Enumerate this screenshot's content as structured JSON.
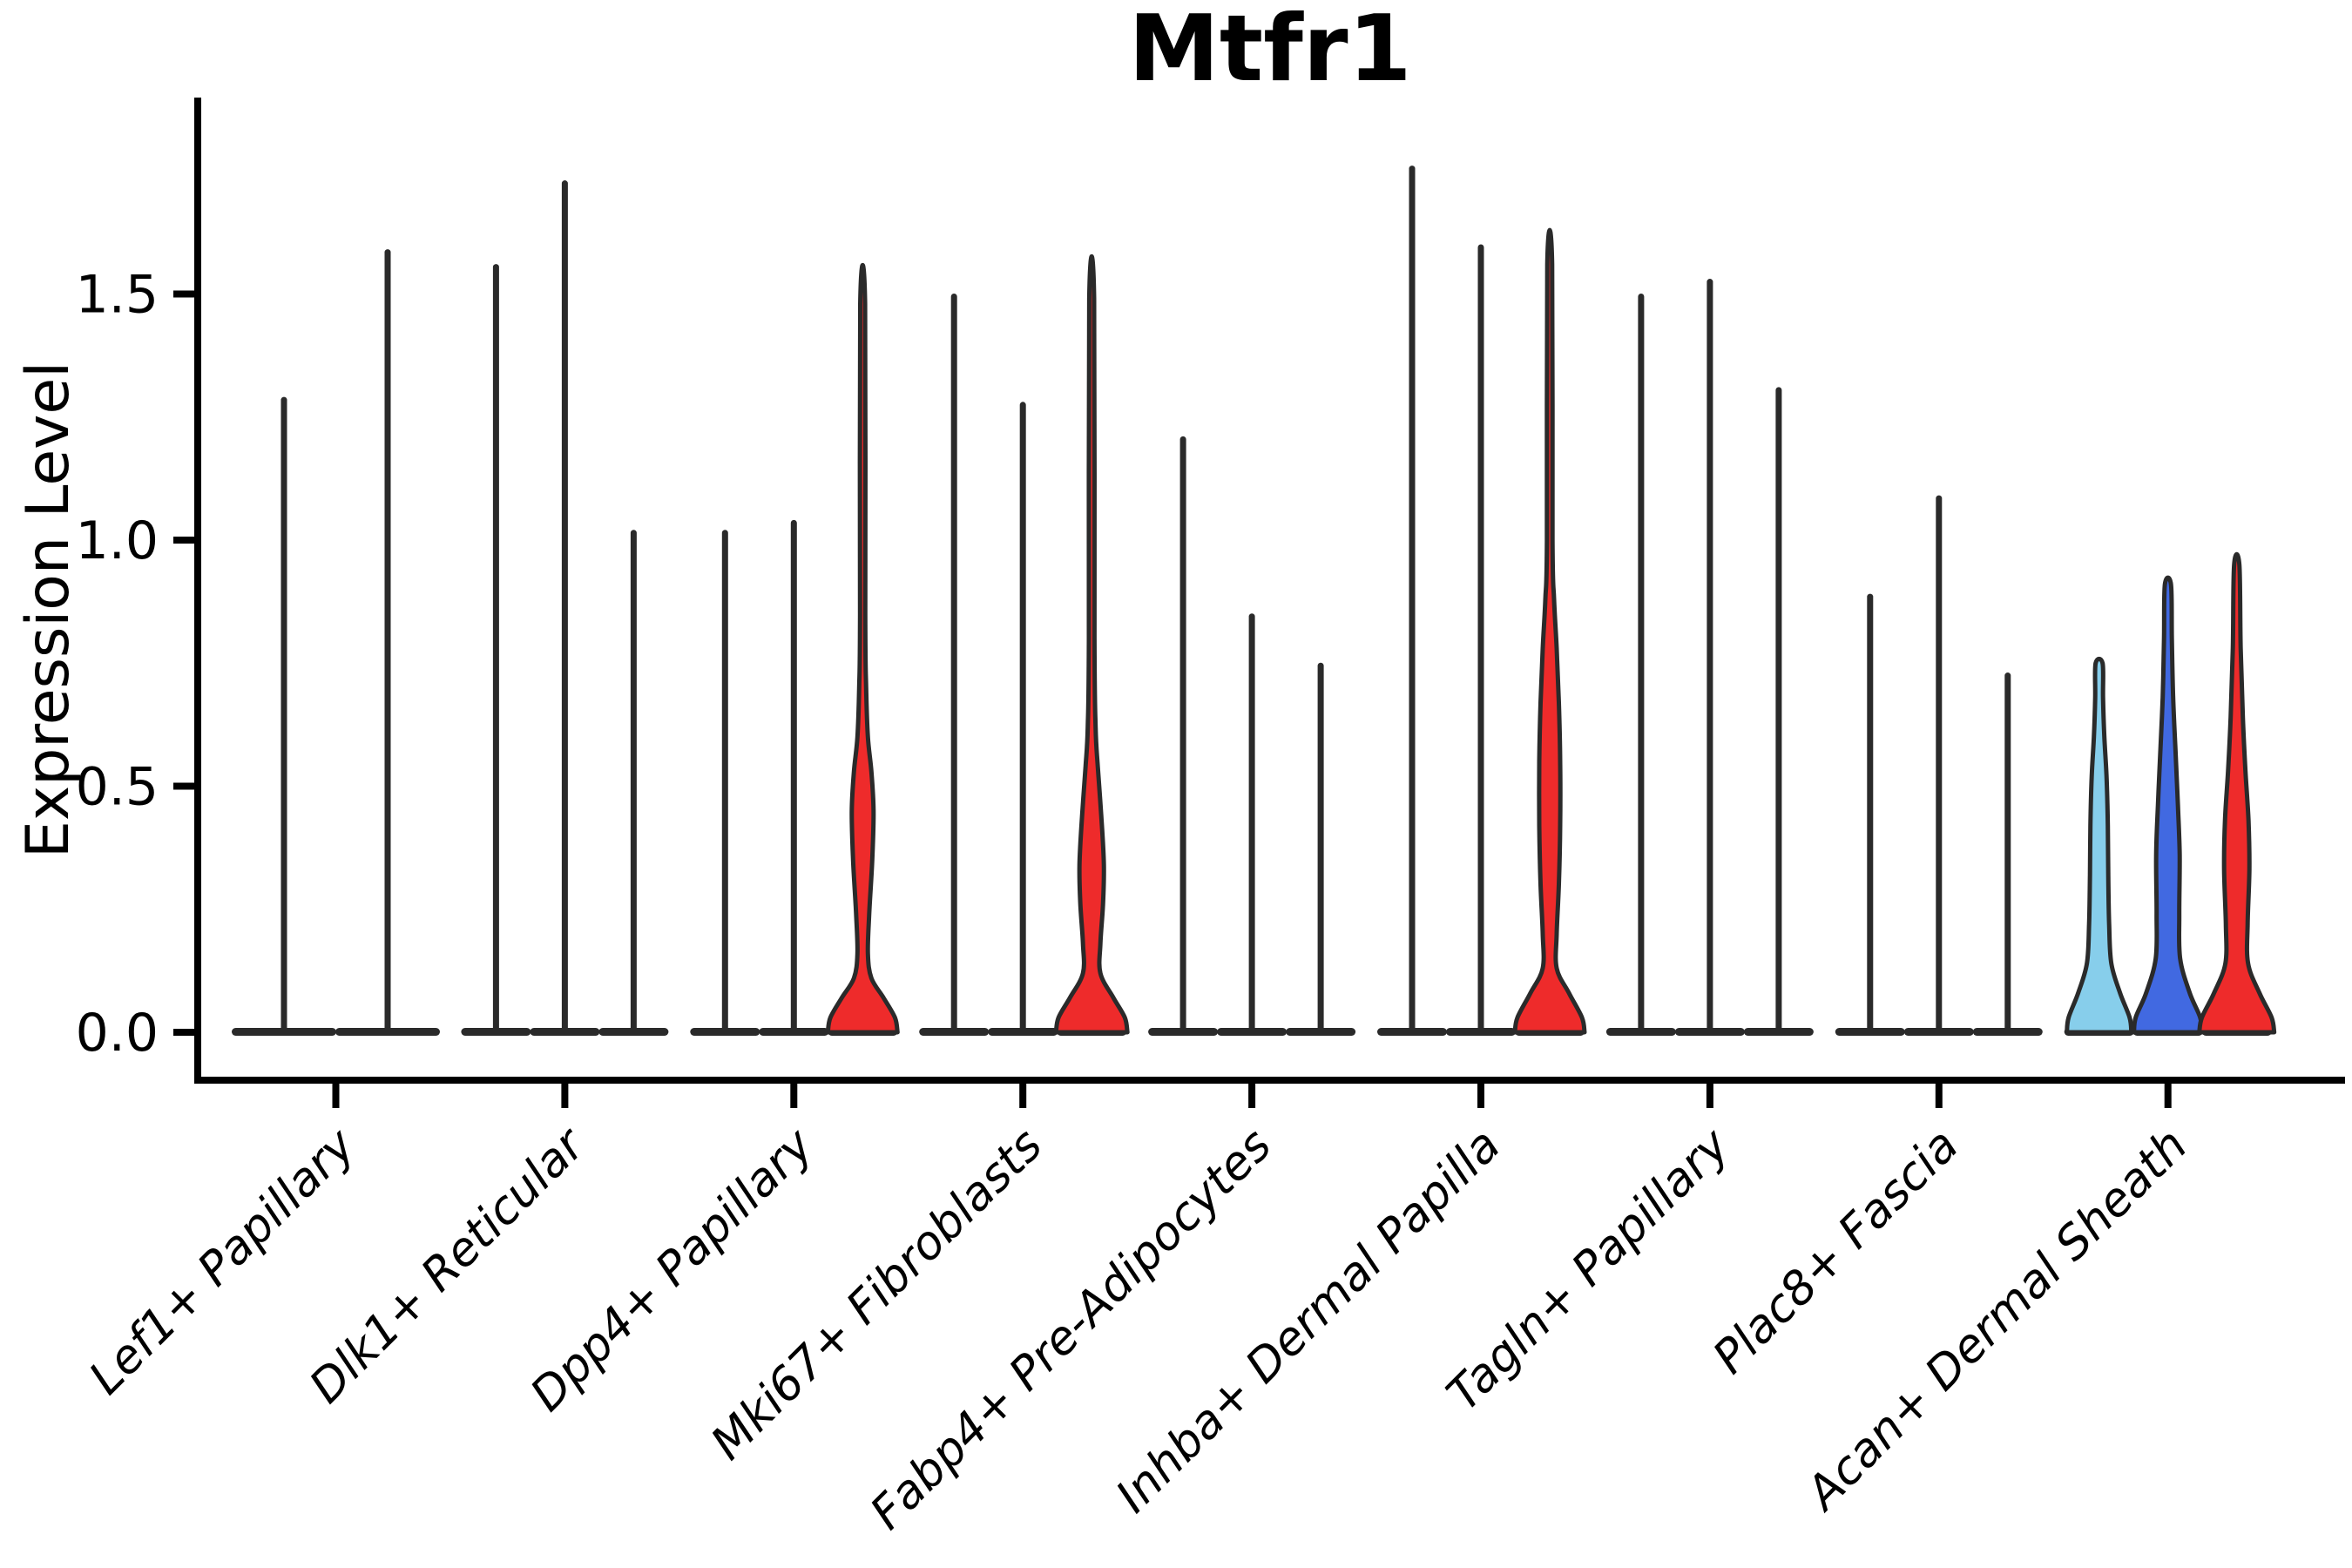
{
  "chart_data": {
    "type": "violin",
    "title": "Mtfr1",
    "ylabel": "Expression Level",
    "xlabel": "",
    "ylim": [
      0,
      1.89
    ],
    "yticks": [
      0.0,
      0.5,
      1.0,
      1.5
    ],
    "ytick_labels": [
      "0.0",
      "0.5",
      "1.0",
      "1.5"
    ],
    "legend": "none",
    "grid": false,
    "colors": {
      "outline": "#2a2a2a",
      "axis": "#000000",
      "red_fill": "#ee2b2b",
      "lightblue_fill": "#87ceeb",
      "blue_fill": "#4169e1"
    },
    "groups": [
      {
        "category": "Lef1+ Papillary",
        "violins": [
          {
            "max": 1.29,
            "kind": "spike"
          },
          {
            "max": 1.59,
            "kind": "spike"
          }
        ]
      },
      {
        "category": "Dlk1+ Reticular",
        "violins": [
          {
            "max": 1.56,
            "kind": "spike"
          },
          {
            "max": 1.73,
            "kind": "spike"
          },
          {
            "max": 1.02,
            "kind": "spike"
          }
        ]
      },
      {
        "category": "Dpp4+ Papillary",
        "violins": [
          {
            "max": 1.02,
            "kind": "spike"
          },
          {
            "max": 1.04,
            "kind": "spike"
          },
          {
            "max": 1.48,
            "kind": "density",
            "fill": "#ee2b2b",
            "profile": [
              [
                0,
                40
              ],
              [
                0.03,
                37
              ],
              [
                0.07,
                24
              ],
              [
                0.11,
                10
              ],
              [
                0.16,
                6
              ],
              [
                0.24,
                7.5
              ],
              [
                0.35,
                11
              ],
              [
                0.45,
                12.5
              ],
              [
                0.53,
                10
              ],
              [
                0.6,
                6
              ],
              [
                0.7,
                4
              ],
              [
                0.85,
                3
              ],
              [
                1.48,
                2.8
              ]
            ]
          }
        ]
      },
      {
        "category": "Mki67+ Fibroblasts",
        "violins": [
          {
            "max": 1.5,
            "kind": "spike"
          },
          {
            "max": 1.28,
            "kind": "spike"
          },
          {
            "max": 1.49,
            "kind": "density",
            "fill": "#ee2b2b",
            "profile": [
              [
                0,
                41
              ],
              [
                0.03,
                38
              ],
              [
                0.07,
                25
              ],
              [
                0.12,
                10
              ],
              [
                0.18,
                10
              ],
              [
                0.26,
                13
              ],
              [
                0.34,
                14
              ],
              [
                0.44,
                11
              ],
              [
                0.54,
                7
              ],
              [
                0.62,
                4.5
              ],
              [
                0.8,
                3.2
              ],
              [
                1.49,
                2.8
              ]
            ]
          }
        ]
      },
      {
        "category": "Fabp4+ Pre-Adipocytes",
        "violins": [
          {
            "max": 1.21,
            "kind": "spike"
          },
          {
            "max": 0.85,
            "kind": "spike"
          },
          {
            "max": 0.75,
            "kind": "spike"
          }
        ]
      },
      {
        "category": "Inhba+ Dermal Papilla",
        "violins": [
          {
            "max": 1.76,
            "kind": "spike"
          },
          {
            "max": 1.6,
            "kind": "spike"
          },
          {
            "max": 1.56,
            "kind": "density",
            "fill": "#ee2b2b",
            "profile": [
              [
                0,
                40
              ],
              [
                0.03,
                37
              ],
              [
                0.08,
                22
              ],
              [
                0.13,
                8
              ],
              [
                0.2,
                8
              ],
              [
                0.3,
                10.5
              ],
              [
                0.42,
                12
              ],
              [
                0.55,
                12
              ],
              [
                0.67,
                10.5
              ],
              [
                0.78,
                8
              ],
              [
                0.88,
                5
              ],
              [
                1.0,
                3.2
              ],
              [
                1.56,
                2.8
              ]
            ]
          }
        ]
      },
      {
        "category": "Tagln+ Papillary",
        "violins": [
          {
            "max": 1.5,
            "kind": "spike"
          },
          {
            "max": 1.53,
            "kind": "spike"
          },
          {
            "max": 1.31,
            "kind": "spike"
          }
        ]
      },
      {
        "category": "Plac8+ Fascia",
        "violins": [
          {
            "max": 0.89,
            "kind": "spike"
          },
          {
            "max": 1.09,
            "kind": "spike"
          },
          {
            "max": 0.73,
            "kind": "spike"
          }
        ]
      },
      {
        "category": "Acan+ Dermal Sheath",
        "violins": [
          {
            "max": 0.75,
            "kind": "density",
            "fill": "#87ceeb",
            "profile": [
              [
                0,
                37
              ],
              [
                0.03,
                35
              ],
              [
                0.08,
                24
              ],
              [
                0.14,
                14
              ],
              [
                0.22,
                11.5
              ],
              [
                0.32,
                10.5
              ],
              [
                0.42,
                10
              ],
              [
                0.52,
                8.5
              ],
              [
                0.6,
                6
              ],
              [
                0.68,
                4.5
              ],
              [
                0.75,
                4
              ]
            ]
          },
          {
            "max": 0.91,
            "kind": "density",
            "fill": "#4169e1",
            "profile": [
              [
                0,
                39
              ],
              [
                0.03,
                37
              ],
              [
                0.08,
                25
              ],
              [
                0.15,
                14
              ],
              [
                0.24,
                13
              ],
              [
                0.36,
                13.5
              ],
              [
                0.46,
                11.5
              ],
              [
                0.56,
                9
              ],
              [
                0.68,
                6
              ],
              [
                0.8,
                4.5
              ],
              [
                0.91,
                3.5
              ]
            ]
          },
          {
            "max": 0.95,
            "kind": "density",
            "fill": "#ee2b2b",
            "profile": [
              [
                0,
                43
              ],
              [
                0.03,
                40
              ],
              [
                0.08,
                26
              ],
              [
                0.14,
                13
              ],
              [
                0.22,
                12.5
              ],
              [
                0.33,
                14.5
              ],
              [
                0.43,
                13.5
              ],
              [
                0.53,
                10
              ],
              [
                0.64,
                7
              ],
              [
                0.78,
                4.5
              ],
              [
                0.95,
                3
              ]
            ]
          }
        ]
      }
    ]
  }
}
